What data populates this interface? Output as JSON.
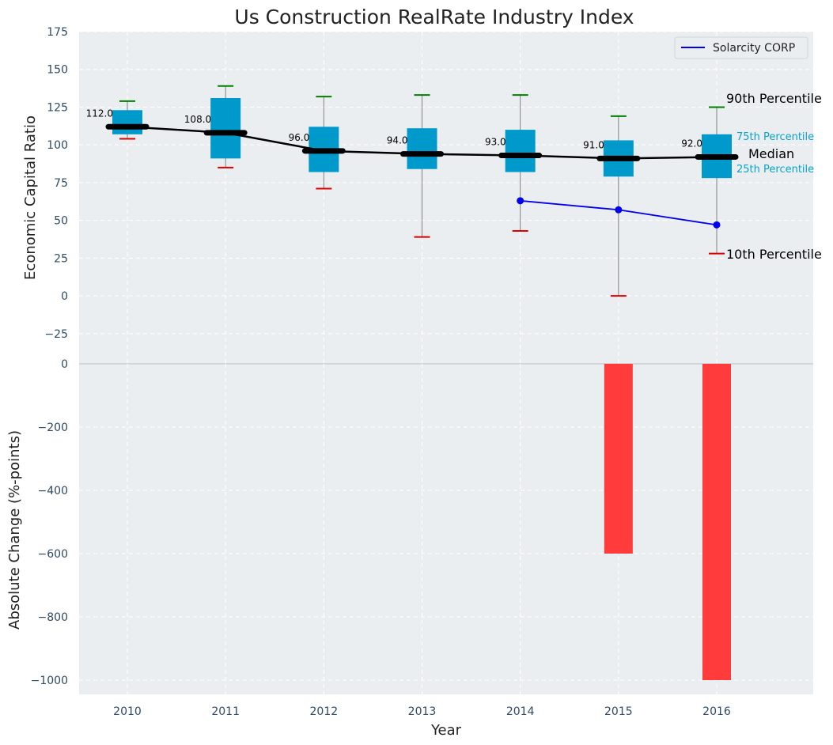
{
  "title": "Us Construction RealRate Industry Index",
  "colors": {
    "panel_bg": "#eaeef0",
    "grid": "#ffffff",
    "box": "#0099cc",
    "median": "#000000",
    "whisker": "#808080",
    "cap_high": "#008000",
    "cap_low": "#dd0000",
    "company": "#0000ee",
    "bar": "#ff3b3b",
    "zero": "#b8bec2"
  },
  "legend": {
    "label": "Solarcity CORP"
  },
  "annotations": {
    "p90": "90th Percentile",
    "p75": "75th Percentile",
    "median": "Median",
    "p25": "25th Percentile",
    "p10": "10th Percentile"
  },
  "chart_data": [
    {
      "type": "box",
      "title": "Us Construction RealRate Industry Index",
      "ylabel": "Economic Capital Ratio",
      "categories": [
        "2010",
        "2011",
        "2012",
        "2013",
        "2014",
        "2015",
        "2016"
      ],
      "ylim": [
        -45,
        175
      ],
      "yticks": [
        -25,
        0,
        25,
        50,
        75,
        100,
        125,
        150,
        175
      ],
      "grid": true,
      "boxes": [
        {
          "year": "2010",
          "p10": 104,
          "p25": 107,
          "median": 112,
          "p75": 123,
          "p90": 129
        },
        {
          "year": "2011",
          "p10": 85,
          "p25": 91,
          "median": 108,
          "p75": 131,
          "p90": 139
        },
        {
          "year": "2012",
          "p10": 71,
          "p25": 82,
          "median": 96,
          "p75": 112,
          "p90": 132
        },
        {
          "year": "2013",
          "p10": 39,
          "p25": 84,
          "median": 94,
          "p75": 111,
          "p90": 133
        },
        {
          "year": "2014",
          "p10": 43,
          "p25": 82,
          "median": 93,
          "p75": 110,
          "p90": 133
        },
        {
          "year": "2015",
          "p10": 0,
          "p25": 79,
          "median": 91,
          "p75": 103,
          "p90": 119
        },
        {
          "year": "2016",
          "p10": 28,
          "p25": 78,
          "median": 92,
          "p75": 107,
          "p90": 125
        }
      ],
      "median_labels": [
        "112.0",
        "108.0",
        "96.0",
        "94.0",
        "93.0",
        "91.0",
        "92.0"
      ],
      "series": [
        {
          "name": "Solarcity CORP",
          "x": [
            "2014",
            "2015",
            "2016"
          ],
          "values": [
            63,
            57,
            47
          ]
        }
      ],
      "legend_position": "top-right"
    },
    {
      "type": "bar",
      "xlabel": "Year",
      "ylabel": "Absolute Change (%-points)",
      "categories": [
        "2010",
        "2011",
        "2012",
        "2013",
        "2014",
        "2015",
        "2016"
      ],
      "values": [
        0,
        0,
        0,
        0,
        0,
        -600,
        -1000
      ],
      "ylim": [
        -1045,
        0
      ],
      "yticks": [
        -1000,
        -800,
        -600,
        -400,
        -200,
        0
      ],
      "grid": true
    }
  ]
}
